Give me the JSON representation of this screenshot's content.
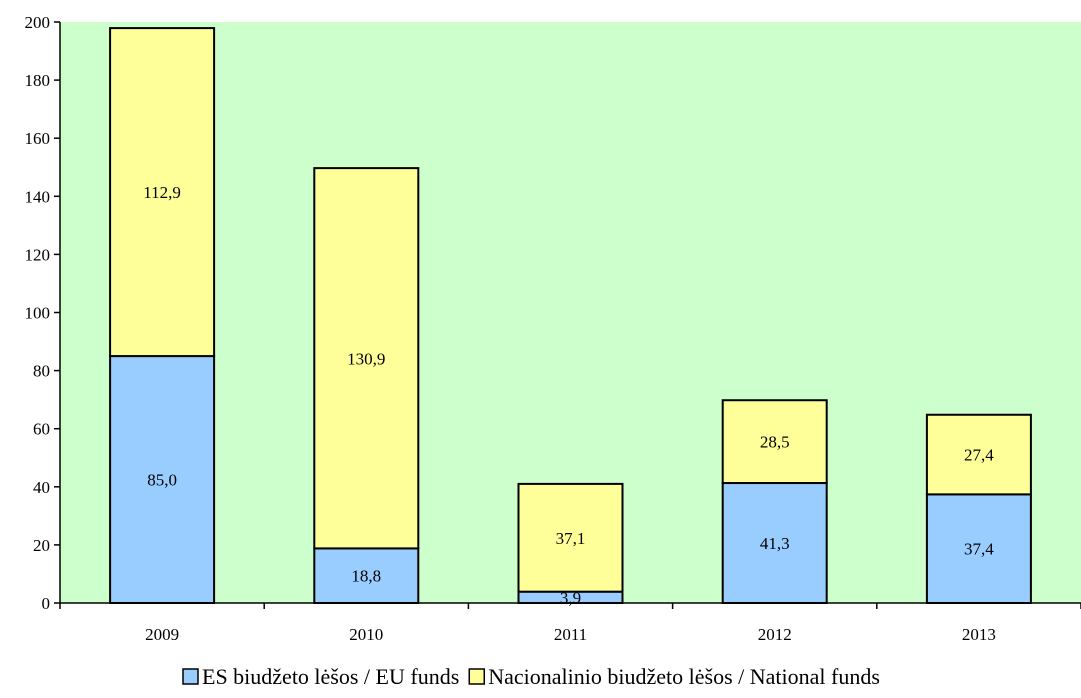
{
  "colors": {
    "plot_background": "#ccffcc",
    "eu_funds": "#99ccff",
    "national_funds": "#ffff99",
    "bar_stroke": "#000000",
    "axis": "#000000",
    "text": "#000000"
  },
  "chart_data": {
    "type": "bar",
    "stacked": true,
    "categories": [
      "2009",
      "2010",
      "2011",
      "2012",
      "2013"
    ],
    "series": [
      {
        "name": "ES biudžeto lėšos / EU funds",
        "values": [
          85.0,
          18.8,
          3.9,
          41.3,
          37.4
        ],
        "value_labels": [
          "85,0",
          "18,8",
          "3,9",
          "41,3",
          "37,4"
        ],
        "color": "#99ccff"
      },
      {
        "name": "Nacionalinio biudžeto lėšos / National funds",
        "values": [
          112.9,
          130.9,
          37.1,
          28.5,
          27.4
        ],
        "value_labels": [
          "112,9",
          "130,9",
          "37,1",
          "28,5",
          "27,4"
        ],
        "color": "#ffff99"
      }
    ],
    "title": "",
    "xlabel": "",
    "ylabel": "",
    "ylim": [
      0,
      200
    ],
    "yticks": [
      0,
      20,
      40,
      60,
      80,
      100,
      120,
      140,
      160,
      180,
      200
    ],
    "grid": false,
    "legend_position": "bottom"
  }
}
